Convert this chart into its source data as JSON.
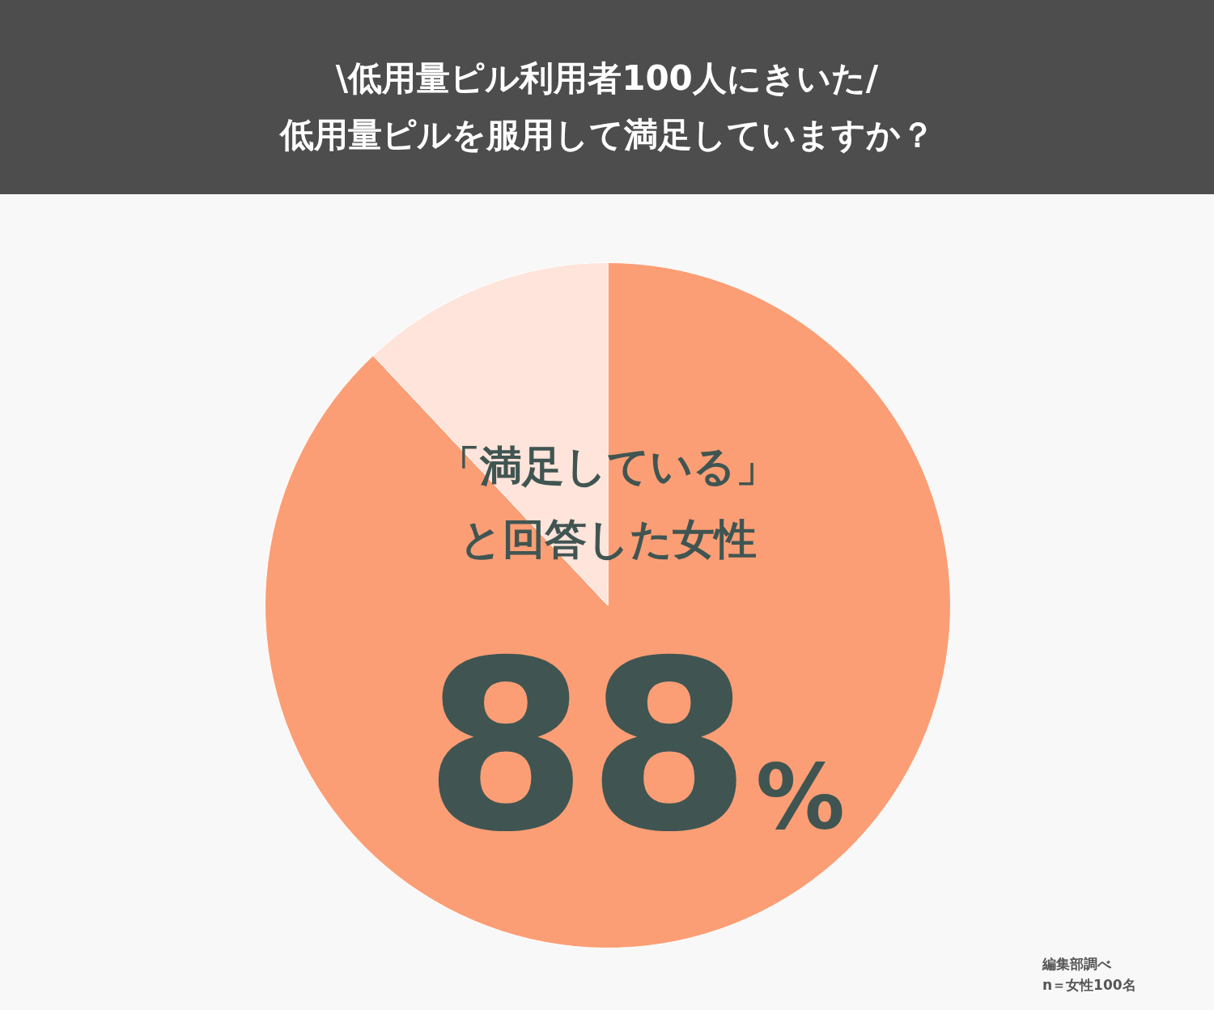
{
  "chart_data": {
    "type": "pie",
    "title": "\\低用量ピル利用者100人にきいた/",
    "subtitle": "低用量ピルを服用して満足していますか？",
    "categories": [
      "「満足している」と回答した女性",
      null
    ],
    "values": [
      88,
      12
    ],
    "colors": [
      "#fc9e75",
      "#fee4da"
    ],
    "value_labels": [
      "88%",
      null
    ],
    "legend": false,
    "annotations": [
      "編集部調べ",
      "n＝女性100名"
    ]
  }
}
